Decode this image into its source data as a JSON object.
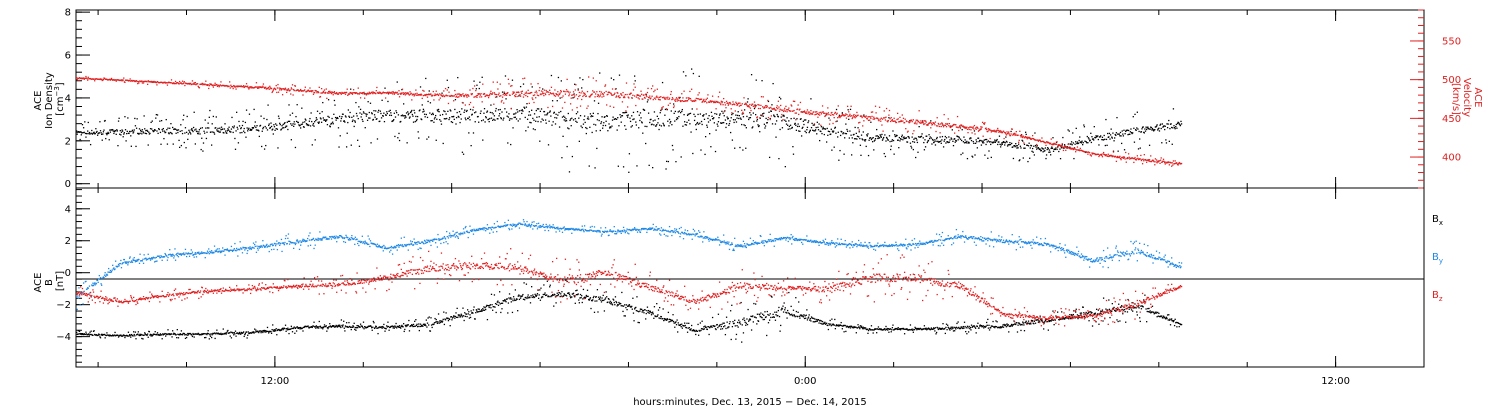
{
  "chart_data": [
    {
      "type": "scatter",
      "panel": "top",
      "ylabel_left": [
        "ACE",
        "Ion Density",
        "[cm",
        "−3",
        "]"
      ],
      "ylabel_right": [
        "ACE",
        "Velocity",
        "[km/s]"
      ],
      "ylim_left": [
        -0.2,
        8.1
      ],
      "ylim_right": [
        360,
        590
      ],
      "yticks_left": [
        "0",
        "2",
        "4",
        "6",
        "8"
      ],
      "yticks_right": [
        "400",
        "450",
        "500",
        "550"
      ],
      "xlim_hours": [
        7.5,
        38.0
      ],
      "grid": false,
      "series": [
        {
          "name": "",
          "axis": "left",
          "color": "#000000",
          "x": [
            7.5,
            8.5,
            9.5,
            10.5,
            11.5,
            12.5,
            13.5,
            14.5,
            15.5,
            16.5,
            17.5,
            18.5,
            19.5,
            20.5,
            21.5,
            22.5,
            23.5,
            24.5,
            25.5,
            26.5,
            27.5,
            28.5,
            29.5,
            30.5,
            31.5,
            32.5
          ],
          "values": [
            2.4,
            2.45,
            2.5,
            2.5,
            2.6,
            2.8,
            3.1,
            3.2,
            3.2,
            3.2,
            3.3,
            3.0,
            2.9,
            3.1,
            3.1,
            3.0,
            2.9,
            2.5,
            2.2,
            2.1,
            2.1,
            1.9,
            1.6,
            2.1,
            2.5,
            2.8
          ],
          "scatter": [
            0.6,
            0.7,
            0.8,
            1.0,
            1.0,
            1.1,
            1.4,
            1.6,
            1.8,
            1.8,
            2.0,
            2.4,
            2.5,
            2.6,
            2.4,
            2.2,
            2.1,
            1.4,
            1.0,
            0.9,
            0.9,
            0.7,
            0.7,
            0.8,
            0.9,
            0.9
          ]
        },
        {
          "name": "",
          "axis": "right",
          "color": "#e02020",
          "x": [
            7.5,
            8.5,
            9.5,
            10.5,
            11.5,
            12.5,
            13.5,
            14.5,
            15.5,
            16.5,
            17.5,
            18.5,
            19.5,
            20.5,
            21.5,
            22.5,
            23.5,
            24.5,
            25.5,
            26.5,
            27.5,
            28.5,
            29.5,
            30.5,
            31.5,
            32.5
          ],
          "values": [
            503,
            500,
            497,
            494,
            491,
            487,
            483,
            484,
            481,
            480,
            482,
            484,
            482,
            478,
            474,
            469,
            462,
            456,
            451,
            446,
            440,
            433,
            419,
            405,
            398,
            392
          ],
          "scatter": [
            3,
            3,
            4,
            5,
            6,
            8,
            8,
            7,
            8,
            16,
            22,
            25,
            22,
            18,
            15,
            14,
            16,
            18,
            18,
            16,
            14,
            10,
            6,
            4,
            8,
            4
          ]
        }
      ]
    },
    {
      "type": "scatter",
      "panel": "bottom",
      "ylabel_left": [
        "ACE",
        "B",
        "[nT]"
      ],
      "ylim": [
        -5.9,
        5.3
      ],
      "yticks_left": [
        "−4",
        "−2",
        "0",
        "2",
        "4"
      ],
      "xlim_hours": [
        7.5,
        38.0
      ],
      "zero_line": true,
      "grid": false,
      "legend_position": "right",
      "series": [
        {
          "name": "Bx",
          "label_main": "B",
          "label_sub": "x",
          "color": "#000000",
          "x": [
            7.5,
            8.5,
            9.5,
            10.5,
            11.5,
            12.5,
            13.5,
            14.5,
            15.5,
            16.5,
            17.5,
            18.5,
            19.5,
            20.5,
            21.5,
            22.5,
            23.5,
            24.5,
            25.5,
            26.5,
            27.5,
            28.5,
            29.5,
            30.5,
            31.5,
            32.5
          ],
          "values": [
            -3.8,
            -3.9,
            -3.8,
            -3.8,
            -3.7,
            -3.4,
            -3.3,
            -3.4,
            -3.2,
            -2.4,
            -1.5,
            -1.3,
            -1.7,
            -2.5,
            -3.6,
            -3.1,
            -2.3,
            -3.2,
            -3.5,
            -3.5,
            -3.4,
            -3.3,
            -2.9,
            -2.5,
            -2.0,
            -3.2
          ],
          "scatter": [
            0.25,
            0.25,
            0.3,
            0.3,
            0.35,
            0.4,
            0.4,
            0.4,
            0.5,
            0.8,
            0.9,
            0.9,
            0.9,
            0.8,
            0.4,
            1.5,
            1.4,
            0.4,
            0.3,
            0.3,
            0.4,
            0.6,
            0.7,
            0.8,
            1.0,
            0.3
          ]
        },
        {
          "name": "By",
          "label_main": "B",
          "label_sub": "y",
          "color": "#1e88e5",
          "x": [
            7.5,
            8.5,
            9.5,
            10.5,
            11.5,
            12.5,
            13.5,
            14.5,
            15.5,
            16.5,
            17.5,
            18.5,
            19.5,
            20.5,
            21.5,
            22.5,
            23.5,
            24.5,
            25.5,
            26.5,
            27.5,
            28.5,
            29.5,
            30.5,
            31.5,
            32.5
          ],
          "values": [
            -1.5,
            0.6,
            1.1,
            1.3,
            1.6,
            2.0,
            2.3,
            1.6,
            2.0,
            2.7,
            3.1,
            2.8,
            2.6,
            2.8,
            2.4,
            1.7,
            2.2,
            1.9,
            1.7,
            1.8,
            2.3,
            2.0,
            1.8,
            0.8,
            1.4,
            0.4
          ],
          "scatter": [
            0.8,
            0.4,
            0.4,
            0.4,
            0.5,
            0.6,
            0.5,
            0.5,
            0.5,
            0.4,
            0.3,
            0.3,
            0.3,
            0.3,
            0.4,
            0.5,
            0.4,
            0.3,
            0.3,
            0.4,
            0.5,
            0.5,
            0.5,
            0.6,
            0.8,
            0.3
          ]
        },
        {
          "name": "Bz",
          "label_main": "B",
          "label_sub": "z",
          "color": "#e02020",
          "x": [
            7.5,
            8.5,
            9.5,
            10.5,
            11.5,
            12.5,
            13.5,
            14.5,
            15.5,
            16.5,
            17.5,
            18.5,
            19.5,
            20.5,
            21.5,
            22.5,
            23.5,
            24.5,
            25.5,
            26.5,
            27.5,
            28.5,
            29.5,
            30.5,
            31.5,
            32.5
          ],
          "values": [
            -1.2,
            -1.8,
            -1.4,
            -1.1,
            -1.0,
            -0.8,
            -0.7,
            -0.3,
            0.3,
            0.5,
            0.4,
            -0.5,
            0.0,
            -0.9,
            -1.8,
            -0.8,
            -0.9,
            -1.0,
            -0.3,
            -0.3,
            -0.8,
            -2.6,
            -2.8,
            -2.7,
            -1.9,
            -0.8
          ],
          "scatter": [
            0.6,
            0.3,
            0.4,
            0.4,
            0.4,
            0.5,
            0.6,
            0.8,
            1.2,
            1.2,
            1.2,
            1.4,
            1.5,
            1.0,
            0.8,
            1.2,
            0.6,
            1.0,
            1.5,
            1.5,
            1.0,
            0.5,
            0.6,
            0.6,
            1.2,
            0.4
          ]
        }
      ]
    }
  ],
  "x_axis": {
    "ticks": [
      {
        "hour": 12,
        "label": "12:00"
      },
      {
        "hour": 24,
        "label": "0:00"
      },
      {
        "hour": 36,
        "label": "12:00"
      }
    ],
    "minor_tick_hours": 2,
    "label": "hours:minutes, Dec. 13, 2015 − Dec. 14, 2015"
  },
  "colors": {
    "density": "#000000",
    "velocity": "#e02020",
    "bx": "#000000",
    "by": "#1e88e5",
    "bz": "#e02020"
  }
}
